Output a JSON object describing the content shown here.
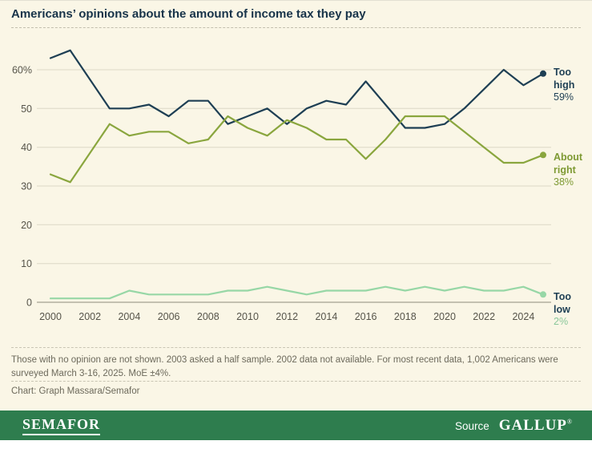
{
  "chart_data": {
    "type": "line",
    "title": "Americans’ opinions about the amount of income tax they pay",
    "xlabel": "",
    "ylabel": "",
    "ylim": [
      0,
      65
    ],
    "grid": true,
    "legend_position": "right-end-labels",
    "years": [
      2000,
      2001,
      2002,
      2003,
      2004,
      2005,
      2006,
      2007,
      2008,
      2009,
      2010,
      2011,
      2012,
      2013,
      2014,
      2015,
      2016,
      2017,
      2018,
      2019,
      2020,
      2021,
      2022,
      2023,
      2024,
      2025
    ],
    "xticks": [
      2000,
      2002,
      2004,
      2006,
      2008,
      2010,
      2012,
      2014,
      2016,
      2018,
      2020,
      2022,
      2024
    ],
    "yticks": [
      {
        "value": 0,
        "label": "0"
      },
      {
        "value": 10,
        "label": "10"
      },
      {
        "value": 20,
        "label": "20"
      },
      {
        "value": 30,
        "label": "30"
      },
      {
        "value": 40,
        "label": "40"
      },
      {
        "value": 50,
        "label": "50"
      },
      {
        "value": 60,
        "label": "60%"
      }
    ],
    "series": [
      {
        "name": "Too high",
        "color": "#1e3f54",
        "label_color": "#1e3f54",
        "value_label": "59%",
        "value_color": "#1e3f54",
        "values": [
          63,
          65,
          null,
          50,
          50,
          51,
          48,
          52,
          52,
          46,
          48,
          50,
          46,
          50,
          52,
          51,
          57,
          51,
          45,
          45,
          46,
          50,
          55,
          60,
          56,
          59
        ]
      },
      {
        "name": "About right",
        "color": "#8aa63e",
        "label_color": "#7e9a33",
        "value_label": "38%",
        "value_color": "#7e9a33",
        "values": [
          33,
          31,
          null,
          46,
          43,
          44,
          44,
          41,
          42,
          48,
          45,
          43,
          47,
          45,
          42,
          42,
          37,
          42,
          48,
          48,
          48,
          44,
          40,
          36,
          36,
          38
        ]
      },
      {
        "name": "Too low",
        "color": "#97d7a6",
        "label_color": "#1e3f54",
        "value_label": "2%",
        "value_color": "#8ac79a",
        "values": [
          1,
          1,
          null,
          1,
          3,
          2,
          2,
          2,
          2,
          3,
          3,
          4,
          3,
          2,
          3,
          3,
          3,
          4,
          3,
          4,
          3,
          4,
          3,
          3,
          4,
          2
        ]
      }
    ]
  },
  "notes": {
    "footnote": "Those with no opinion are not shown. 2003 asked a half sample. 2002 data not available. For most recent data, 1,002 Americans were surveyed March 3-16, 2025. MoE ±4%.",
    "credit": "Chart: Graph Massara/Semafor"
  },
  "footer": {
    "brand": "SEMAFOR",
    "source_label": "Source",
    "source_name": "GALLUP",
    "trademark": "®"
  }
}
